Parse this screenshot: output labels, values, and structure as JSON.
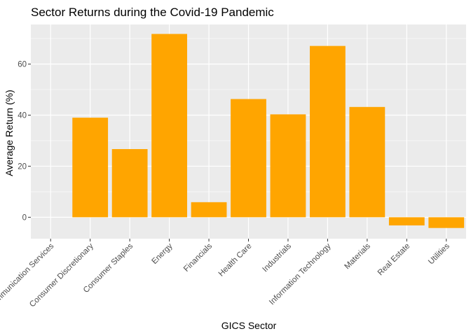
{
  "chart_data": {
    "type": "bar",
    "title": "Sector Returns during the Covid-19 Pandemic",
    "xlabel": "GICS Sector",
    "ylabel": "Average Return (%)",
    "categories": [
      "Communication Services",
      "Consumer Discretionary",
      "Consumer Staples",
      "Energy",
      "Financials",
      "Health Care",
      "Industrials",
      "Information Technology",
      "Materials",
      "Real Estate",
      "Utilities"
    ],
    "values": [
      0,
      39,
      26.7,
      71.8,
      5.9,
      46.3,
      40.3,
      67.1,
      43.2,
      -3.2,
      -4.2
    ],
    "ylim": [
      -8.4,
      75.5
    ],
    "yticks": [
      0,
      20,
      40,
      60
    ],
    "grid": true,
    "bar_color": "#FFA500",
    "panel_color": "#EBEBEB",
    "grid_color": "#FFFFFF"
  }
}
